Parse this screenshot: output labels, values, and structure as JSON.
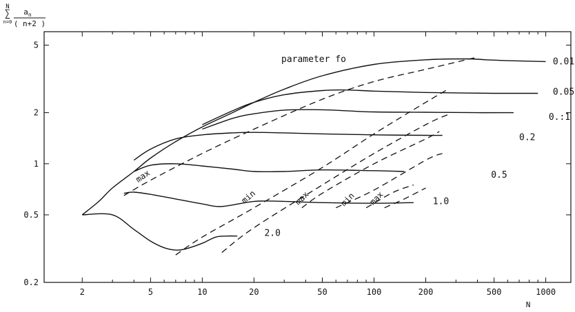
{
  "chart_data": {
    "type": "line",
    "title": "parameter fo",
    "xlabel": "N",
    "ylabel": {
      "sum_top": "N",
      "sum_bottom": "n=0",
      "numerator": "a",
      "numerator_sub": "n",
      "denominator": "( n+2 )"
    },
    "x_scale": "log",
    "y_scale": "log",
    "xlim": [
      1.2,
      1400
    ],
    "ylim": [
      0.2,
      6
    ],
    "x_ticks": [
      2,
      5,
      10,
      20,
      50,
      100,
      200,
      500,
      1000
    ],
    "x_tick_labels": [
      "2",
      "5",
      "10",
      "20",
      "50",
      "100",
      "200",
      "500",
      "1000"
    ],
    "y_ticks": [
      0.2,
      0.5,
      1,
      2,
      5
    ],
    "y_tick_labels": [
      "0.2",
      "0.5",
      "1",
      "2",
      "5"
    ],
    "series": [
      {
        "name": "0.01",
        "points": [
          [
            2,
            0.5
          ],
          [
            2.5,
            0.6
          ],
          [
            3,
            0.72
          ],
          [
            4,
            0.9
          ],
          [
            5,
            1.08
          ],
          [
            7,
            1.35
          ],
          [
            10,
            1.65
          ],
          [
            15,
            2.0
          ],
          [
            20,
            2.3
          ],
          [
            30,
            2.75
          ],
          [
            50,
            3.3
          ],
          [
            100,
            3.85
          ],
          [
            200,
            4.1
          ],
          [
            350,
            4.15
          ],
          [
            450,
            4.1
          ],
          [
            600,
            4.05
          ],
          [
            1000,
            4.0
          ]
        ]
      },
      {
        "name": "0.05",
        "points": [
          [
            10,
            1.7
          ],
          [
            15,
            2.05
          ],
          [
            20,
            2.3
          ],
          [
            30,
            2.55
          ],
          [
            50,
            2.7
          ],
          [
            70,
            2.72
          ],
          [
            100,
            2.68
          ],
          [
            200,
            2.63
          ],
          [
            500,
            2.6
          ],
          [
            900,
            2.6
          ]
        ]
      },
      {
        "name": "0.1",
        "points": [
          [
            10,
            1.6
          ],
          [
            15,
            1.85
          ],
          [
            20,
            1.97
          ],
          [
            30,
            2.07
          ],
          [
            50,
            2.08
          ],
          [
            70,
            2.05
          ],
          [
            100,
            2.02
          ],
          [
            200,
            2.01
          ],
          [
            400,
            2.0
          ],
          [
            650,
            2.0
          ]
        ]
      },
      {
        "name": "0.2",
        "points": [
          [
            4,
            1.05
          ],
          [
            5,
            1.22
          ],
          [
            7,
            1.4
          ],
          [
            10,
            1.48
          ],
          [
            15,
            1.52
          ],
          [
            20,
            1.53
          ],
          [
            30,
            1.52
          ],
          [
            50,
            1.5
          ],
          [
            100,
            1.48
          ],
          [
            200,
            1.47
          ],
          [
            250,
            1.47
          ]
        ]
      },
      {
        "name": "0.5",
        "points": [
          [
            4,
            0.9
          ],
          [
            5,
            0.98
          ],
          [
            7,
            1.0
          ],
          [
            10,
            0.97
          ],
          [
            15,
            0.93
          ],
          [
            20,
            0.9
          ],
          [
            30,
            0.9
          ],
          [
            50,
            0.92
          ],
          [
            100,
            0.91
          ],
          [
            150,
            0.9
          ]
        ]
      },
      {
        "name": "1.0",
        "points": [
          [
            3.5,
            0.67
          ],
          [
            4,
            0.68
          ],
          [
            5,
            0.66
          ],
          [
            7,
            0.62
          ],
          [
            10,
            0.58
          ],
          [
            13,
            0.56
          ],
          [
            20,
            0.6
          ],
          [
            30,
            0.6
          ],
          [
            50,
            0.59
          ],
          [
            100,
            0.585
          ],
          [
            170,
            0.59
          ]
        ]
      },
      {
        "name": "2.0",
        "points": [
          [
            2,
            0.5
          ],
          [
            3,
            0.5
          ],
          [
            4,
            0.41
          ],
          [
            5,
            0.35
          ],
          [
            6,
            0.32
          ],
          [
            7,
            0.31
          ],
          [
            8,
            0.315
          ],
          [
            10,
            0.34
          ],
          [
            12,
            0.37
          ],
          [
            14,
            0.375
          ],
          [
            16,
            0.375
          ]
        ]
      }
    ],
    "envelopes": [
      {
        "name": "max",
        "points": [
          [
            3.5,
            0.65
          ],
          [
            5,
            0.8
          ],
          [
            10,
            1.15
          ],
          [
            20,
            1.6
          ],
          [
            50,
            2.4
          ],
          [
            100,
            3.05
          ],
          [
            200,
            3.6
          ],
          [
            400,
            4.25
          ]
        ]
      },
      {
        "name": "min",
        "points": [
          [
            7,
            0.29
          ],
          [
            10,
            0.37
          ],
          [
            20,
            0.55
          ],
          [
            50,
            0.95
          ],
          [
            100,
            1.5
          ],
          [
            200,
            2.3
          ],
          [
            270,
            2.75
          ]
        ]
      },
      {
        "name": "max",
        "points": [
          [
            13,
            0.3
          ],
          [
            20,
            0.42
          ],
          [
            50,
            0.75
          ],
          [
            100,
            1.15
          ],
          [
            200,
            1.7
          ],
          [
            270,
            1.95
          ]
        ]
      },
      {
        "name": "min",
        "points": [
          [
            38,
            0.55
          ],
          [
            50,
            0.67
          ],
          [
            100,
            1.0
          ],
          [
            200,
            1.4
          ],
          [
            240,
            1.55
          ]
        ]
      },
      {
        "name": "max",
        "points": [
          [
            60,
            0.55
          ],
          [
            100,
            0.7
          ],
          [
            200,
            1.05
          ],
          [
            250,
            1.15
          ]
        ]
      },
      {
        "name": "min",
        "points": [
          [
            90,
            0.55
          ],
          [
            130,
            0.68
          ],
          [
            170,
            0.75
          ]
        ]
      },
      {
        "name": "max",
        "points": [
          [
            115,
            0.55
          ],
          [
            150,
            0.62
          ],
          [
            200,
            0.72
          ]
        ]
      }
    ],
    "curve_labels": [
      {
        "text": "0.01",
        "anchor": [
          1100,
          4.0
        ]
      },
      {
        "text": "0.05",
        "anchor": [
          1100,
          2.65
        ]
      },
      {
        "text": "0.:1",
        "anchor": [
          1040,
          1.88
        ]
      },
      {
        "text": "0.2",
        "anchor": [
          700,
          1.43
        ]
      },
      {
        "text": "0.5",
        "anchor": [
          480,
          0.86
        ]
      },
      {
        "text": "1.0",
        "anchor": [
          220,
          0.6
        ]
      },
      {
        "text": "2.0",
        "anchor": [
          23,
          0.39
        ]
      }
    ],
    "annotations": [
      {
        "text": "max",
        "anchor": [
          4.6,
          0.82
        ],
        "rotate": -35
      },
      {
        "text": "min",
        "anchor": [
          19,
          0.62
        ],
        "rotate": -40
      },
      {
        "text": "max",
        "anchor": [
          39,
          0.61
        ],
        "rotate": -45
      },
      {
        "text": "min",
        "anchor": [
          72,
          0.6
        ],
        "rotate": -45
      },
      {
        "text": "max",
        "anchor": [
          106,
          0.61
        ],
        "rotate": -45
      }
    ],
    "grid": false
  }
}
